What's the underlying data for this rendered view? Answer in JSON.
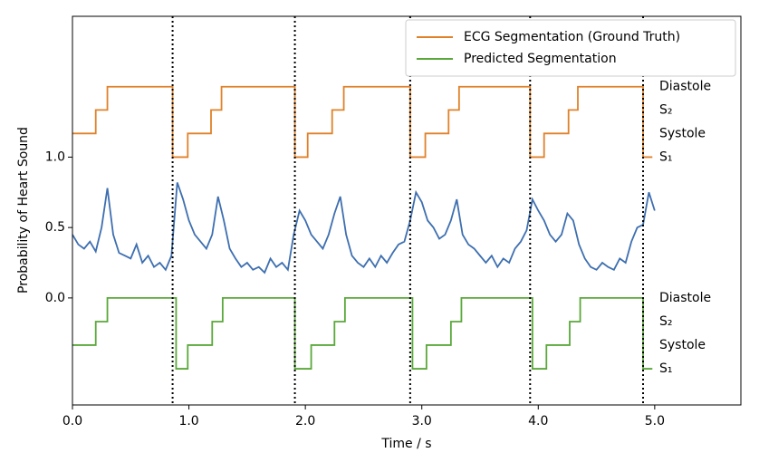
{
  "chart_data": {
    "type": "line",
    "x_label": "Time / s",
    "y_label": "Probability of Heart Sound",
    "xlim": [
      0,
      5.74
    ],
    "ylim": [
      -0.76,
      2.0
    ],
    "xticks": [
      {
        "value": 0,
        "label": "0.0"
      },
      {
        "value": 1,
        "label": "1.0"
      },
      {
        "value": 2,
        "label": "2.0"
      },
      {
        "value": 3,
        "label": "3.0"
      },
      {
        "value": 4,
        "label": "4.0"
      },
      {
        "value": 5,
        "label": "5.0"
      }
    ],
    "yticks": [
      {
        "value": 0,
        "label": "0.0"
      },
      {
        "value": 0.5,
        "label": "0.5"
      },
      {
        "value": 1,
        "label": "1.0"
      }
    ],
    "legend": "upper right",
    "vlines": [
      0.86,
      1.91,
      2.9,
      3.93,
      4.9
    ],
    "vline_color": "#000000",
    "annotations": [
      {
        "text": "Diastole",
        "y": 1.5
      },
      {
        "text": "S₂",
        "y": 1.335
      },
      {
        "text": "Systole",
        "y": 1.168
      },
      {
        "text": "S₁",
        "y": 1.0
      },
      {
        "text": "Diastole",
        "y": 0.0
      },
      {
        "text": "S₂",
        "y": -0.168
      },
      {
        "text": "Systole",
        "y": -0.335
      },
      {
        "text": "S₁",
        "y": -0.503
      }
    ],
    "series": [
      {
        "name": "ECG Segmentation (Ground Truth)",
        "color": "#e0812a",
        "step": "post",
        "x": [
          0,
          0.2,
          0.3,
          0.86,
          0.99,
          1.19,
          1.28,
          1.91,
          2.02,
          2.23,
          2.33,
          2.9,
          3.03,
          3.23,
          3.32,
          3.93,
          4.05,
          4.26,
          4.34,
          4.9,
          4.98
        ],
        "values": [
          1.168,
          1.335,
          1.5,
          1.0,
          1.168,
          1.335,
          1.5,
          1.0,
          1.168,
          1.335,
          1.5,
          1.0,
          1.168,
          1.335,
          1.5,
          1.0,
          1.168,
          1.335,
          1.5,
          1.0,
          1.0
        ]
      },
      {
        "name": "Predicted Segmentation",
        "color": "#5aa83a",
        "step": "post",
        "x": [
          0,
          0.2,
          0.3,
          0.89,
          0.99,
          1.2,
          1.29,
          1.91,
          2.05,
          2.25,
          2.34,
          2.92,
          3.04,
          3.25,
          3.34,
          3.95,
          4.07,
          4.27,
          4.36,
          4.9,
          4.98
        ],
        "values": [
          -0.335,
          -0.168,
          0.0,
          -0.503,
          -0.335,
          -0.168,
          0.0,
          -0.503,
          -0.335,
          -0.168,
          0.0,
          -0.503,
          -0.335,
          -0.168,
          0.0,
          -0.503,
          -0.335,
          -0.168,
          0.0,
          -0.503,
          -0.503
        ]
      },
      {
        "color": "#3e6fb0",
        "x": [
          0,
          0.05,
          0.1,
          0.15,
          0.2,
          0.25,
          0.3,
          0.35,
          0.4,
          0.45,
          0.5,
          0.55,
          0.6,
          0.65,
          0.7,
          0.75,
          0.8,
          0.85,
          0.9,
          0.95,
          1.0,
          1.05,
          1.1,
          1.15,
          1.2,
          1.25,
          1.3,
          1.35,
          1.4,
          1.45,
          1.5,
          1.55,
          1.6,
          1.65,
          1.7,
          1.75,
          1.8,
          1.85,
          1.9,
          1.95,
          2.0,
          2.05,
          2.1,
          2.15,
          2.2,
          2.25,
          2.3,
          2.35,
          2.4,
          2.45,
          2.5,
          2.55,
          2.6,
          2.65,
          2.7,
          2.75,
          2.8,
          2.85,
          2.9,
          2.95,
          3.0,
          3.05,
          3.1,
          3.15,
          3.2,
          3.25,
          3.3,
          3.35,
          3.4,
          3.45,
          3.5,
          3.55,
          3.6,
          3.65,
          3.7,
          3.75,
          3.8,
          3.85,
          3.9,
          3.95,
          4.0,
          4.05,
          4.1,
          4.15,
          4.2,
          4.25,
          4.3,
          4.35,
          4.4,
          4.45,
          4.5,
          4.55,
          4.6,
          4.65,
          4.7,
          4.75,
          4.8,
          4.85,
          4.9,
          4.95,
          5.0
        ],
        "values": [
          0.45,
          0.38,
          0.35,
          0.4,
          0.33,
          0.5,
          0.78,
          0.45,
          0.32,
          0.3,
          0.28,
          0.38,
          0.25,
          0.3,
          0.22,
          0.25,
          0.2,
          0.3,
          0.82,
          0.7,
          0.55,
          0.45,
          0.4,
          0.35,
          0.45,
          0.72,
          0.55,
          0.35,
          0.28,
          0.22,
          0.25,
          0.2,
          0.22,
          0.18,
          0.28,
          0.22,
          0.25,
          0.2,
          0.45,
          0.62,
          0.55,
          0.45,
          0.4,
          0.35,
          0.45,
          0.6,
          0.72,
          0.45,
          0.3,
          0.25,
          0.22,
          0.28,
          0.22,
          0.3,
          0.25,
          0.32,
          0.38,
          0.4,
          0.55,
          0.75,
          0.68,
          0.55,
          0.5,
          0.42,
          0.45,
          0.55,
          0.7,
          0.45,
          0.38,
          0.35,
          0.3,
          0.25,
          0.3,
          0.22,
          0.28,
          0.25,
          0.35,
          0.4,
          0.48,
          0.7,
          0.62,
          0.55,
          0.45,
          0.4,
          0.45,
          0.6,
          0.55,
          0.38,
          0.28,
          0.22,
          0.2,
          0.25,
          0.22,
          0.2,
          0.28,
          0.25,
          0.4,
          0.5,
          0.52,
          0.75,
          0.62
        ]
      }
    ]
  }
}
